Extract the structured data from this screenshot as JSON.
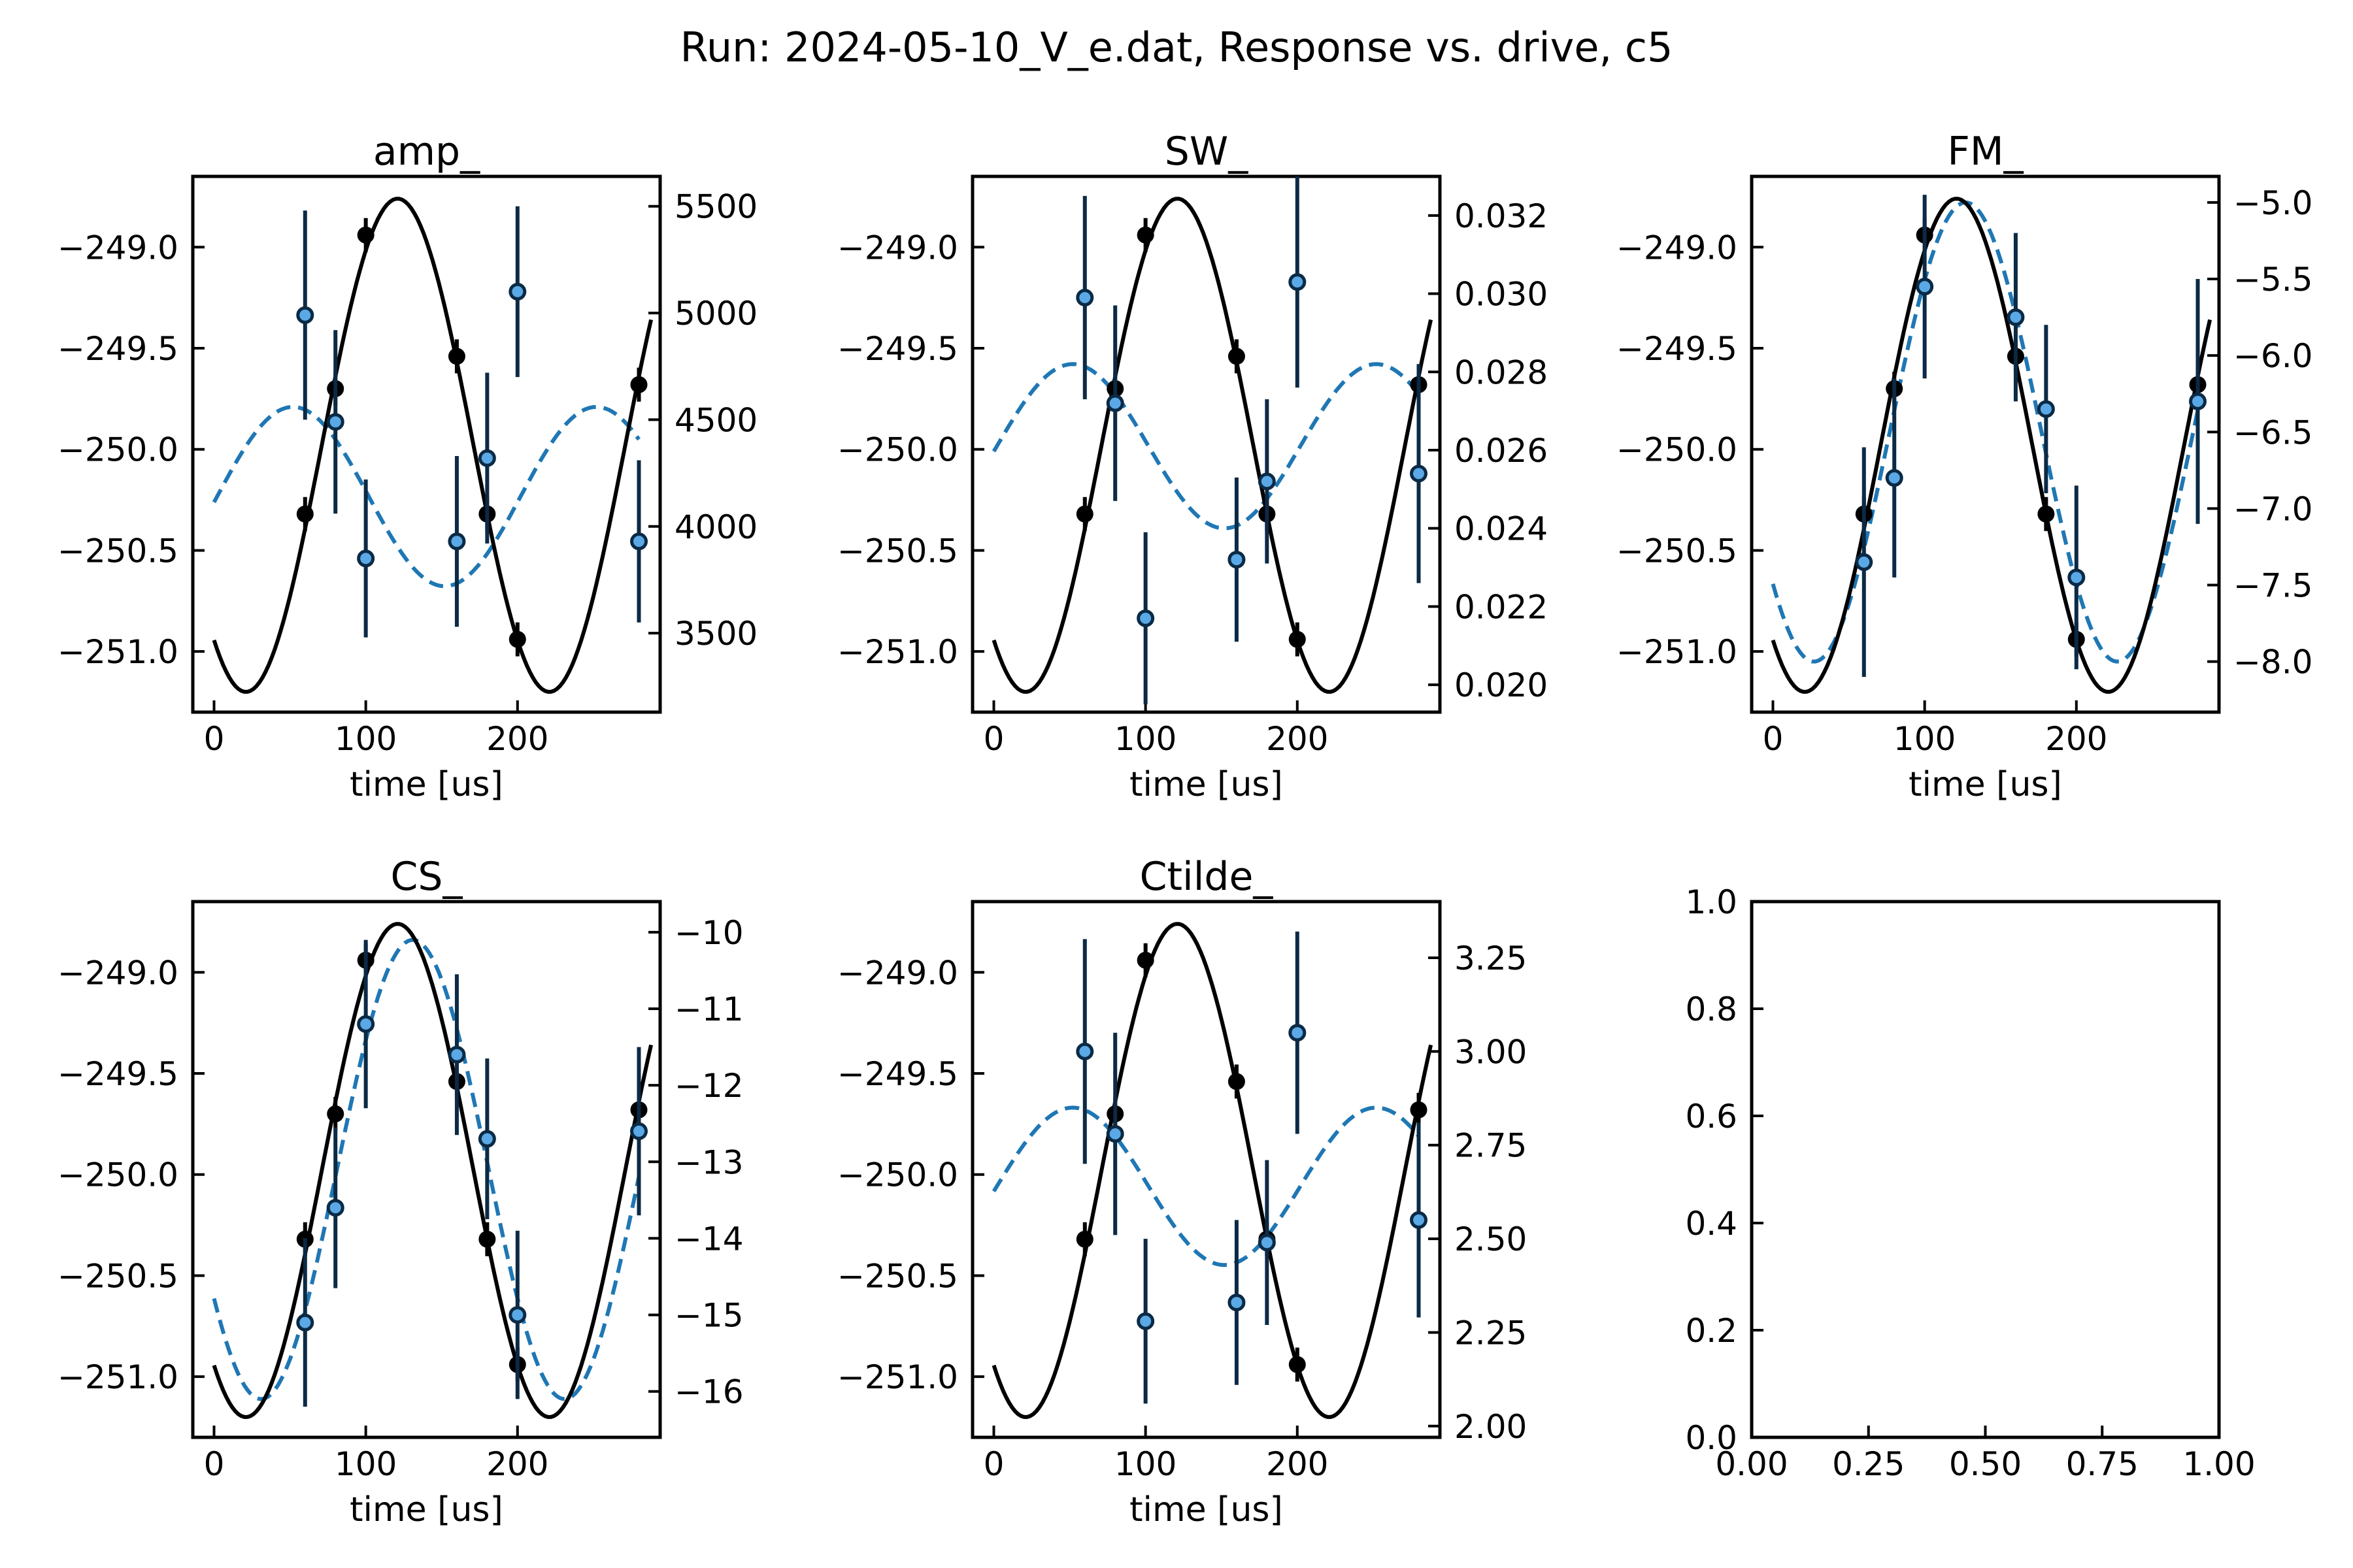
{
  "page_title": "Run: 2024-05-10_V_e.dat, Response vs. drive, c5",
  "colors": {
    "measured": "#000000",
    "response": "#1f77b4",
    "marker_fill": "#5aa9e6",
    "errorbar": "#0b2a45"
  },
  "chart_data": [
    {
      "type": "scatter",
      "title": "amp_",
      "xlabel": "time [us]",
      "xlim": [
        -14,
        294
      ],
      "xticks": [
        0,
        100,
        200
      ],
      "left_axis": {
        "ylim": [
          -251.3,
          -248.65
        ],
        "ticks": [
          -249.0,
          -249.5,
          -250.0,
          -250.5,
          -251.0
        ],
        "tick_labels": [
          "−249.0",
          "−249.5",
          "−250.0",
          "−250.5",
          "−251.0"
        ]
      },
      "right_axis": {
        "ylim": [
          3130,
          5640
        ],
        "ticks": [
          5500,
          5000,
          4500,
          4000,
          3500
        ],
        "tick_labels": [
          "5500",
          "5000",
          "4500",
          "4000",
          "3500"
        ]
      },
      "measured_points": {
        "x": [
          60,
          80,
          100,
          160,
          180,
          200,
          280
        ],
        "y": [
          -250.32,
          -249.7,
          -248.94,
          -249.54,
          -250.32,
          -250.94,
          -249.68
        ]
      },
      "measured_fit": {
        "offset": -249.98,
        "amplitude": 1.22,
        "period": 200,
        "peak_x": 121
      },
      "response_points": {
        "x": [
          60,
          80,
          100,
          160,
          180,
          200,
          280
        ],
        "y": [
          4990,
          4490,
          3850,
          3930,
          4320,
          5100,
          3930
        ],
        "yerr": [
          490,
          430,
          370,
          400,
          400,
          400,
          380
        ]
      },
      "response_fit": {
        "offset": 4140,
        "amplitude": 420,
        "period": 200,
        "peak_x": 52
      }
    },
    {
      "type": "scatter",
      "title": "SW_",
      "xlabel": "time [us]",
      "xlim": [
        -14,
        294
      ],
      "xticks": [
        0,
        100,
        200
      ],
      "left_axis": {
        "ylim": [
          -251.3,
          -248.65
        ],
        "ticks": [
          -249.0,
          -249.5,
          -250.0,
          -250.5,
          -251.0
        ],
        "tick_labels": [
          "−249.0",
          "−249.5",
          "−250.0",
          "−250.5",
          "−251.0"
        ]
      },
      "right_axis": {
        "ylim": [
          0.0193,
          0.033
        ],
        "ticks": [
          0.032,
          0.03,
          0.028,
          0.026,
          0.024,
          0.022,
          0.02
        ],
        "tick_labels": [
          "0.032",
          "0.030",
          "0.028",
          "0.026",
          "0.024",
          "0.022",
          "0.020"
        ]
      },
      "measured_points": {
        "x": [
          60,
          80,
          100,
          160,
          180,
          200,
          280
        ],
        "y": [
          -250.32,
          -249.7,
          -248.94,
          -249.54,
          -250.32,
          -250.94,
          -249.68
        ]
      },
      "measured_fit": {
        "offset": -249.98,
        "amplitude": 1.22,
        "period": 200,
        "peak_x": 121
      },
      "response_points": {
        "x": [
          60,
          80,
          100,
          160,
          180,
          200,
          280
        ],
        "y": [
          0.0299,
          0.0272,
          0.0217,
          0.0232,
          0.0252,
          0.0303,
          0.0254
        ],
        "yerr": [
          0.0026,
          0.0025,
          0.0022,
          0.0021,
          0.0021,
          0.0027,
          0.0028
        ]
      },
      "response_fit": {
        "offset": 0.0261,
        "amplitude": 0.0021,
        "period": 200,
        "peak_x": 52
      }
    },
    {
      "type": "scatter",
      "title": "FM_",
      "xlabel": "time [us]",
      "xlim": [
        -14,
        294
      ],
      "xticks": [
        0,
        100,
        200
      ],
      "left_axis": {
        "ylim": [
          -251.3,
          -248.65
        ],
        "ticks": [
          -249.0,
          -249.5,
          -250.0,
          -250.5,
          -251.0
        ],
        "tick_labels": [
          "−249.0",
          "−249.5",
          "−250.0",
          "−250.5",
          "−251.0"
        ]
      },
      "right_axis": {
        "ylim": [
          -8.33,
          -4.83
        ],
        "ticks": [
          -5.0,
          -5.5,
          -6.0,
          -6.5,
          -7.0,
          -7.5,
          -8.0
        ],
        "tick_labels": [
          "−5.0",
          "−5.5",
          "−6.0",
          "−6.5",
          "−7.0",
          "−7.5",
          "−8.0"
        ]
      },
      "measured_points": {
        "x": [
          60,
          80,
          100,
          160,
          180,
          200,
          280
        ],
        "y": [
          -250.32,
          -249.7,
          -248.94,
          -249.54,
          -250.32,
          -250.94,
          -249.68
        ]
      },
      "measured_fit": {
        "offset": -249.98,
        "amplitude": 1.22,
        "period": 200,
        "peak_x": 121
      },
      "response_points": {
        "x": [
          60,
          80,
          100,
          160,
          180,
          200,
          280
        ],
        "y": [
          -7.35,
          -6.8,
          -5.55,
          -5.75,
          -6.35,
          -7.45,
          -6.3
        ],
        "yerr": [
          0.75,
          0.65,
          0.6,
          0.55,
          0.55,
          0.6,
          0.8
        ]
      },
      "response_fit": {
        "offset": -6.5,
        "amplitude": 1.5,
        "period": 200,
        "peak_x": 127
      }
    },
    {
      "type": "scatter",
      "title": "CS_",
      "xlabel": "time [us]",
      "xlim": [
        -14,
        294
      ],
      "xticks": [
        0,
        100,
        200
      ],
      "left_axis": {
        "ylim": [
          -251.3,
          -248.65
        ],
        "ticks": [
          -249.0,
          -249.5,
          -250.0,
          -250.5,
          -251.0
        ],
        "tick_labels": [
          "−249.0",
          "−249.5",
          "−250.0",
          "−250.5",
          "−251.0"
        ]
      },
      "right_axis": {
        "ylim": [
          -16.6,
          -9.6
        ],
        "ticks": [
          -10,
          -11,
          -12,
          -13,
          -14,
          -15,
          -16
        ],
        "tick_labels": [
          "−10",
          "−11",
          "−12",
          "−13",
          "−14",
          "−15",
          "−16"
        ]
      },
      "measured_points": {
        "x": [
          60,
          80,
          100,
          160,
          180,
          200,
          280
        ],
        "y": [
          -250.32,
          -249.7,
          -248.94,
          -249.54,
          -250.32,
          -250.94,
          -249.68
        ]
      },
      "measured_fit": {
        "offset": -249.98,
        "amplitude": 1.22,
        "period": 200,
        "peak_x": 121
      },
      "response_points": {
        "x": [
          60,
          80,
          100,
          160,
          180,
          200,
          280
        ],
        "y": [
          -15.1,
          -13.6,
          -11.2,
          -11.6,
          -12.7,
          -15.0,
          -12.6
        ],
        "yerr": [
          1.1,
          1.05,
          1.1,
          1.05,
          1.05,
          1.1,
          1.1
        ]
      },
      "response_fit": {
        "offset": -13.1,
        "amplitude": 3.0,
        "period": 200,
        "peak_x": 131
      }
    },
    {
      "type": "scatter",
      "title": "Ctilde_",
      "xlabel": "time [us]",
      "xlim": [
        -14,
        294
      ],
      "xticks": [
        0,
        100,
        200
      ],
      "left_axis": {
        "ylim": [
          -251.3,
          -248.65
        ],
        "ticks": [
          -249.0,
          -249.5,
          -250.0,
          -250.5,
          -251.0
        ],
        "tick_labels": [
          "−249.0",
          "−249.5",
          "−250.0",
          "−250.5",
          "−251.0"
        ]
      },
      "right_axis": {
        "ylim": [
          1.97,
          3.4
        ],
        "ticks": [
          3.25,
          3.0,
          2.75,
          2.5,
          2.25,
          2.0
        ],
        "tick_labels": [
          "3.25",
          "3.00",
          "2.75",
          "2.50",
          "2.25",
          "2.00"
        ]
      },
      "measured_points": {
        "x": [
          60,
          80,
          100,
          160,
          180,
          200,
          280
        ],
        "y": [
          -250.32,
          -249.7,
          -248.94,
          -249.54,
          -250.32,
          -250.94,
          -249.68
        ]
      },
      "measured_fit": {
        "offset": -249.98,
        "amplitude": 1.22,
        "period": 200,
        "peak_x": 121
      },
      "response_points": {
        "x": [
          60,
          80,
          100,
          160,
          180,
          200,
          280
        ],
        "y": [
          3.0,
          2.78,
          2.28,
          2.33,
          2.49,
          3.05,
          2.55
        ],
        "yerr": [
          0.3,
          0.27,
          0.22,
          0.22,
          0.22,
          0.27,
          0.26
        ]
      },
      "response_fit": {
        "offset": 2.64,
        "amplitude": 0.21,
        "period": 200,
        "peak_x": 52
      }
    },
    {
      "type": "scatter",
      "title": "",
      "xlabel": "",
      "xlim": [
        0,
        1
      ],
      "xticks": [
        0.0,
        0.25,
        0.5,
        0.75,
        1.0
      ],
      "xtick_labels": [
        "0.00",
        "0.25",
        "0.50",
        "0.75",
        "1.00"
      ],
      "left_axis": {
        "ylim": [
          0,
          1
        ],
        "ticks": [
          1.0,
          0.8,
          0.6,
          0.4,
          0.2,
          0.0
        ],
        "tick_labels": [
          "1.0",
          "0.8",
          "0.6",
          "0.4",
          "0.2",
          "0.0"
        ]
      },
      "empty": true
    }
  ]
}
